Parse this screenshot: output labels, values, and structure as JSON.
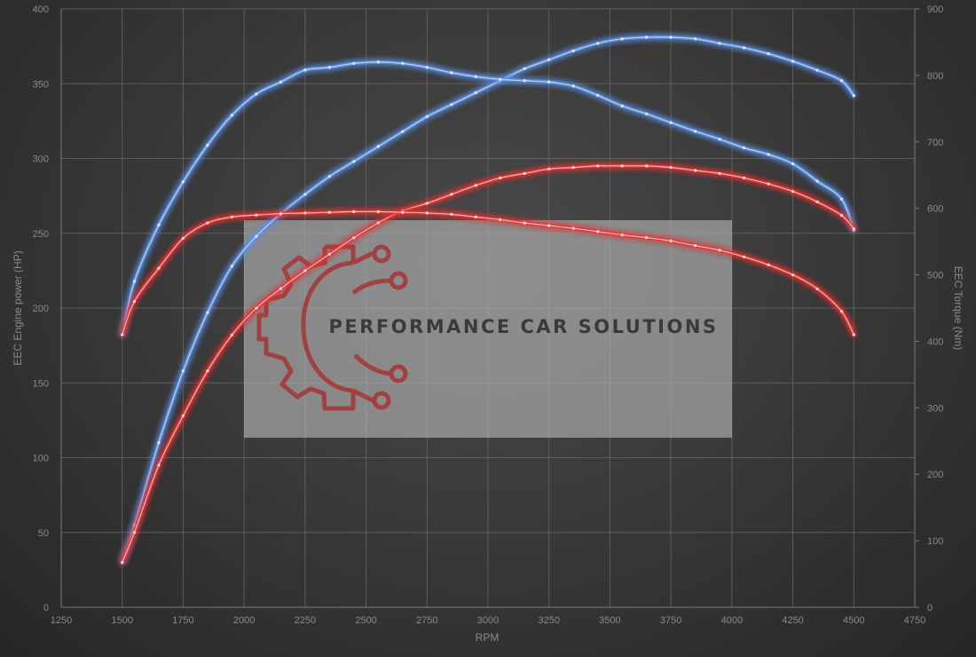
{
  "watermark": {
    "text": "PERFORMANCE CAR SOLUTIONS",
    "logo_icon": "gear-circuit-icon",
    "logo_color": "#a33b3b"
  },
  "chart_data": {
    "type": "line",
    "xlabel": "RPM",
    "ylabel_left": "EEC Engine power (HP)",
    "ylabel_right": "EEC Torque (Nm)",
    "xlim": [
      1250,
      4750
    ],
    "ylim_left": [
      0,
      400
    ],
    "ylim_right": [
      0,
      900
    ],
    "x_ticks": [
      "1250",
      "1500",
      "1750",
      "2000",
      "2250",
      "2500",
      "2750",
      "3000",
      "3250",
      "3500",
      "3750",
      "4000",
      "4250",
      "4500",
      "4750"
    ],
    "y_left_ticks": [
      "0",
      "50",
      "100",
      "150",
      "200",
      "250",
      "300",
      "350",
      "400"
    ],
    "y_right_ticks": [
      "0",
      "100",
      "200",
      "300",
      "400",
      "500",
      "600",
      "700",
      "800",
      "900"
    ],
    "grid": true,
    "series": [
      {
        "axis": "left",
        "color": "#5b8fe0",
        "x": [
          1500,
          1550,
          1650,
          1750,
          1850,
          1950,
          2050,
          2150,
          2250,
          2350,
          2450,
          2550,
          2650,
          2750,
          2850,
          2950,
          3050,
          3150,
          3250,
          3350,
          3450,
          3550,
          3650,
          3750,
          3850,
          3950,
          4050,
          4150,
          4250,
          4350,
          4450,
          4500
        ],
        "y": [
          30,
          55,
          110,
          158,
          197,
          228,
          248,
          263,
          276,
          288,
          298,
          308,
          318,
          328,
          336,
          344,
          352,
          360,
          366,
          372,
          377,
          380,
          381,
          381,
          380,
          377,
          374,
          370,
          365,
          359,
          352,
          342
        ]
      },
      {
        "axis": "right",
        "color": "#5b8fe0",
        "x": [
          1500,
          1550,
          1650,
          1750,
          1850,
          1950,
          2050,
          2150,
          2250,
          2350,
          2450,
          2550,
          2650,
          2750,
          2850,
          2950,
          3050,
          3150,
          3250,
          3350,
          3450,
          3550,
          3650,
          3750,
          3850,
          3950,
          4050,
          4150,
          4250,
          4350,
          4450,
          4500
        ],
        "y": [
          410,
          490,
          575,
          640,
          695,
          740,
          772,
          790,
          808,
          812,
          818,
          820,
          818,
          812,
          804,
          798,
          794,
          792,
          790,
          784,
          770,
          754,
          742,
          729,
          716,
          704,
          691,
          681,
          667,
          641,
          614,
          567
        ]
      },
      {
        "axis": "left",
        "color": "#e03434",
        "x": [
          1500,
          1550,
          1650,
          1750,
          1850,
          1950,
          2050,
          2150,
          2250,
          2350,
          2450,
          2550,
          2650,
          2750,
          2850,
          2950,
          3050,
          3150,
          3250,
          3350,
          3450,
          3550,
          3650,
          3750,
          3850,
          3950,
          4050,
          4150,
          4250,
          4350,
          4450,
          4500
        ],
        "y": [
          30,
          50,
          95,
          128,
          158,
          182,
          200,
          213,
          225,
          236,
          247,
          257,
          265,
          270,
          276,
          282,
          287,
          290,
          293,
          294,
          295,
          295,
          295,
          294,
          292,
          290,
          287,
          283,
          278,
          271,
          262,
          253
        ]
      },
      {
        "axis": "right",
        "color": "#e03434",
        "x": [
          1500,
          1550,
          1650,
          1750,
          1850,
          1950,
          2050,
          2150,
          2250,
          2350,
          2450,
          2550,
          2650,
          2750,
          2850,
          2950,
          3050,
          3150,
          3250,
          3350,
          3450,
          3550,
          3650,
          3750,
          3850,
          3950,
          4050,
          4150,
          4250,
          4350,
          4450,
          4500
        ],
        "y": [
          410,
          460,
          510,
          555,
          578,
          587,
          590,
          592,
          593,
          594,
          595,
          595,
          594,
          593,
          591,
          587,
          583,
          578,
          574,
          570,
          565,
          560,
          556,
          551,
          544,
          537,
          527,
          515,
          500,
          479,
          445,
          410
        ]
      }
    ]
  }
}
